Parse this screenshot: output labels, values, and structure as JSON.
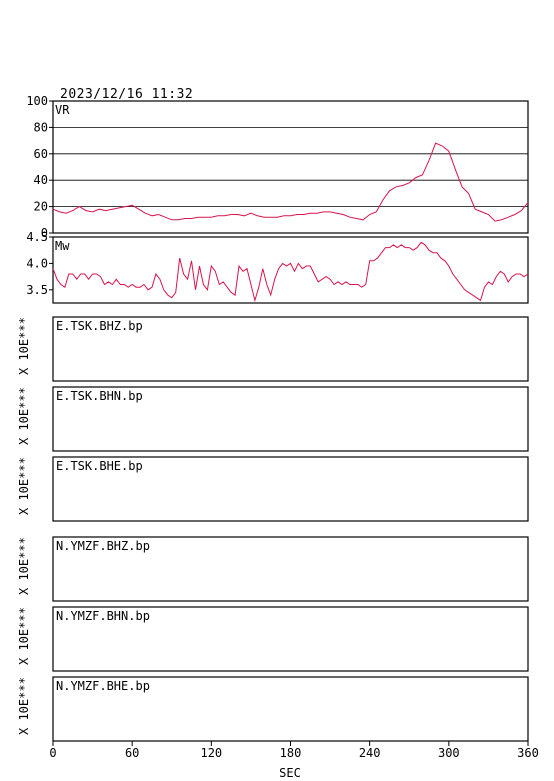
{
  "header": {
    "timestamp": "2023/12/16  11:32"
  },
  "colors": {
    "trace": "#d6164a",
    "axis": "#000000"
  },
  "chart_data": [
    {
      "type": "line",
      "label": "VR",
      "ylim": [
        0,
        100
      ],
      "yticks": [
        0,
        20,
        40,
        60,
        80,
        100
      ],
      "grid": true,
      "x": [
        0,
        5,
        10,
        15,
        20,
        25,
        30,
        35,
        40,
        45,
        50,
        55,
        60,
        65,
        70,
        75,
        80,
        85,
        90,
        95,
        100,
        105,
        110,
        115,
        120,
        125,
        130,
        135,
        140,
        145,
        150,
        155,
        160,
        165,
        170,
        175,
        180,
        185,
        190,
        195,
        200,
        205,
        210,
        215,
        220,
        225,
        230,
        235,
        240,
        245,
        250,
        255,
        260,
        265,
        270,
        275,
        280,
        285,
        290,
        295,
        300,
        305,
        310,
        315,
        320,
        325,
        330,
        335,
        340,
        345,
        350,
        355,
        360
      ],
      "y": [
        18,
        16,
        15,
        17,
        20,
        17,
        16,
        18,
        17,
        18,
        19,
        20,
        21,
        18,
        15,
        13,
        14,
        12,
        10,
        10,
        11,
        11,
        12,
        12,
        12,
        13,
        13,
        14,
        14,
        13,
        15,
        13,
        12,
        12,
        12,
        13,
        13,
        14,
        14,
        15,
        15,
        16,
        16,
        15,
        14,
        12,
        11,
        10,
        14,
        16,
        25,
        32,
        35,
        36,
        38,
        42,
        44,
        55,
        68,
        66,
        62,
        48,
        35,
        30,
        18,
        16,
        14,
        9,
        10,
        12,
        14,
        17,
        23
      ]
    },
    {
      "type": "line",
      "label": "Mw",
      "ylim": [
        3.25,
        4.5
      ],
      "yticks": [
        3.5,
        4.0,
        4.5
      ],
      "x": [
        0,
        3,
        6,
        9,
        12,
        15,
        18,
        21,
        24,
        27,
        30,
        33,
        36,
        39,
        42,
        45,
        48,
        51,
        54,
        57,
        60,
        63,
        66,
        69,
        72,
        75,
        78,
        81,
        84,
        87,
        90,
        93,
        96,
        99,
        102,
        105,
        108,
        111,
        114,
        117,
        120,
        123,
        126,
        129,
        132,
        135,
        138,
        141,
        144,
        147,
        150,
        153,
        156,
        159,
        162,
        165,
        168,
        171,
        174,
        177,
        180,
        183,
        186,
        189,
        192,
        195,
        198,
        201,
        204,
        207,
        210,
        213,
        216,
        219,
        222,
        225,
        228,
        231,
        234,
        237,
        240,
        243,
        246,
        249,
        252,
        255,
        258,
        261,
        264,
        267,
        270,
        273,
        276,
        279,
        282,
        285,
        288,
        291,
        294,
        297,
        300,
        303,
        306,
        309,
        312,
        315,
        318,
        321,
        324,
        327,
        330,
        333,
        336,
        339,
        342,
        345,
        348,
        351,
        354,
        357,
        360
      ],
      "y": [
        3.9,
        3.7,
        3.6,
        3.55,
        3.8,
        3.8,
        3.7,
        3.8,
        3.8,
        3.7,
        3.8,
        3.8,
        3.75,
        3.6,
        3.65,
        3.6,
        3.7,
        3.6,
        3.6,
        3.55,
        3.6,
        3.55,
        3.55,
        3.6,
        3.5,
        3.55,
        3.8,
        3.7,
        3.5,
        3.4,
        3.35,
        3.45,
        4.1,
        3.8,
        3.7,
        4.05,
        3.5,
        3.95,
        3.6,
        3.5,
        3.95,
        3.85,
        3.6,
        3.65,
        3.55,
        3.45,
        3.4,
        3.95,
        3.85,
        3.9,
        3.6,
        3.3,
        3.55,
        3.9,
        3.6,
        3.4,
        3.7,
        3.9,
        4.0,
        3.95,
        4.0,
        3.85,
        4.0,
        3.9,
        3.95,
        3.95,
        3.8,
        3.65,
        3.7,
        3.75,
        3.7,
        3.6,
        3.65,
        3.6,
        3.65,
        3.6,
        3.6,
        3.6,
        3.55,
        3.6,
        4.05,
        4.05,
        4.1,
        4.2,
        4.3,
        4.3,
        4.35,
        4.3,
        4.35,
        4.3,
        4.3,
        4.25,
        4.3,
        4.4,
        4.35,
        4.25,
        4.2,
        4.2,
        4.1,
        4.05,
        3.95,
        3.8,
        3.7,
        3.6,
        3.5,
        3.45,
        3.4,
        3.35,
        3.3,
        3.55,
        3.65,
        3.6,
        3.75,
        3.85,
        3.8,
        3.65,
        3.75,
        3.8,
        3.8,
        3.75,
        3.8
      ]
    }
  ],
  "traces": [
    {
      "name": "E.TSK.BHZ.bp",
      "scale": "X 10E***"
    },
    {
      "name": "E.TSK.BHN.bp",
      "scale": "X 10E***"
    },
    {
      "name": "E.TSK.BHE.bp",
      "scale": "X 10E***"
    },
    {
      "name": "N.YMZF.BHZ.bp",
      "scale": "X 10E***"
    },
    {
      "name": "N.YMZF.BHN.bp",
      "scale": "X 10E***"
    },
    {
      "name": "N.YMZF.BHE.bp",
      "scale": "X 10E***"
    }
  ],
  "xaxis": {
    "label": "SEC",
    "ticks": [
      0,
      60,
      120,
      180,
      240,
      300,
      360
    ],
    "range": [
      0,
      360
    ]
  }
}
